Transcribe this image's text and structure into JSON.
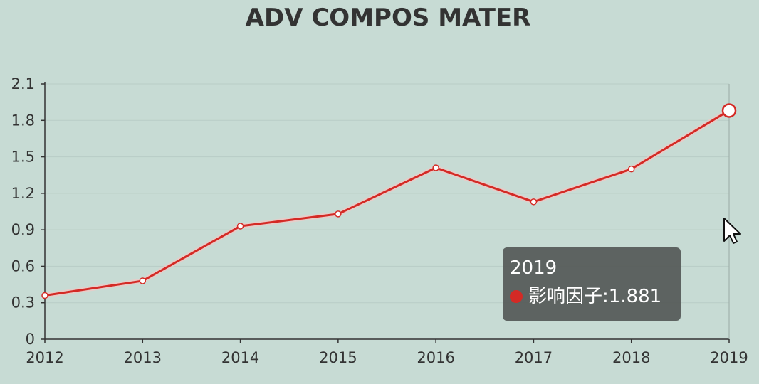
{
  "chart_data": {
    "type": "line",
    "title": "ADV COMPOS MATER",
    "categories": [
      "2012",
      "2013",
      "2014",
      "2015",
      "2016",
      "2017",
      "2018",
      "2019"
    ],
    "series": [
      {
        "name": "影响因子",
        "values": [
          0.36,
          0.48,
          0.93,
          1.03,
          1.41,
          1.13,
          1.4,
          1.881
        ],
        "color": "#d42a25"
      }
    ],
    "ylim": [
      0,
      2.1
    ],
    "yticks": [
      "0",
      "0.3",
      "0.6",
      "0.9",
      "1.2",
      "1.5",
      "1.8",
      "2.1"
    ],
    "grid": true,
    "legend": "none"
  },
  "tooltip": {
    "title": "2019",
    "series_name": "影响因子",
    "value_text": "1.881",
    "marker_color": "#d42a25"
  },
  "cursor": {
    "icon": "arrow-cursor-icon"
  }
}
